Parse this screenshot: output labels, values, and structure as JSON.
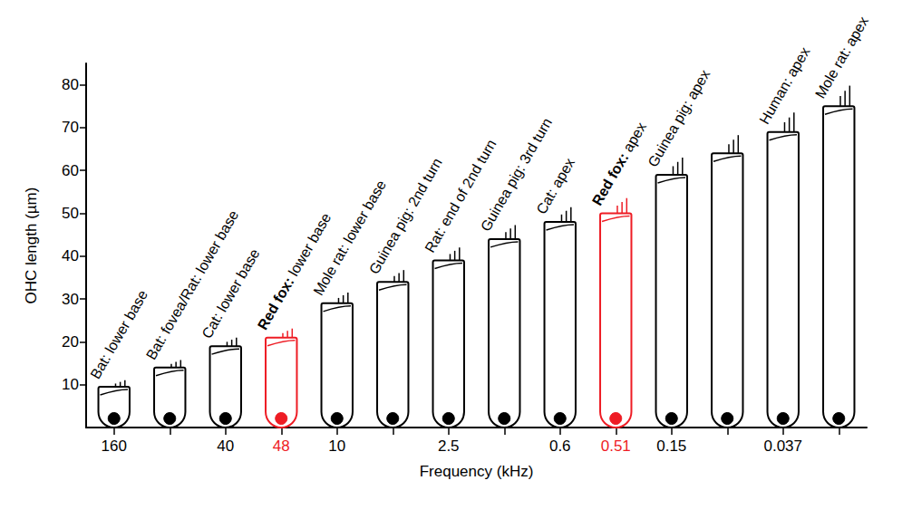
{
  "chart_data": {
    "type": "bar",
    "x_label": "Frequency (kHz)",
    "y_label": "OHC length (µm)",
    "categories": [
      "160",
      null,
      "40",
      "48",
      "10",
      null,
      "2.5",
      null,
      "0.6",
      "0.51",
      "0.15",
      null,
      "0.037",
      null
    ],
    "annotations": [
      "Bat: lower base",
      "Bat: fovea/Rat: lower base",
      "Cat: lower base",
      "Red fox: lower base",
      "Mole rat: lower base",
      "Guinea pig: 2nd turn",
      "Rat: end of 2nd turn",
      "Guinea pig: 3rd turn",
      "Cat: apex",
      "Red fox: apex",
      "Guinea pig: apex",
      null,
      "Human: apex",
      "Mole rat: apex"
    ],
    "values": [
      9.5,
      14,
      19,
      21,
      29,
      34,
      39,
      44,
      48,
      50,
      59,
      64,
      69,
      75
    ],
    "colors": [
      "#000000",
      "#000000",
      "#000000",
      "#ee1c24",
      "#000000",
      "#000000",
      "#000000",
      "#000000",
      "#000000",
      "#ee1c24",
      "#000000",
      "#000000",
      "#000000",
      "#000000"
    ],
    "ylim": [
      0,
      85
    ],
    "yticks": [
      10,
      20,
      30,
      40,
      50,
      60,
      70,
      80
    ],
    "grid": false
  }
}
